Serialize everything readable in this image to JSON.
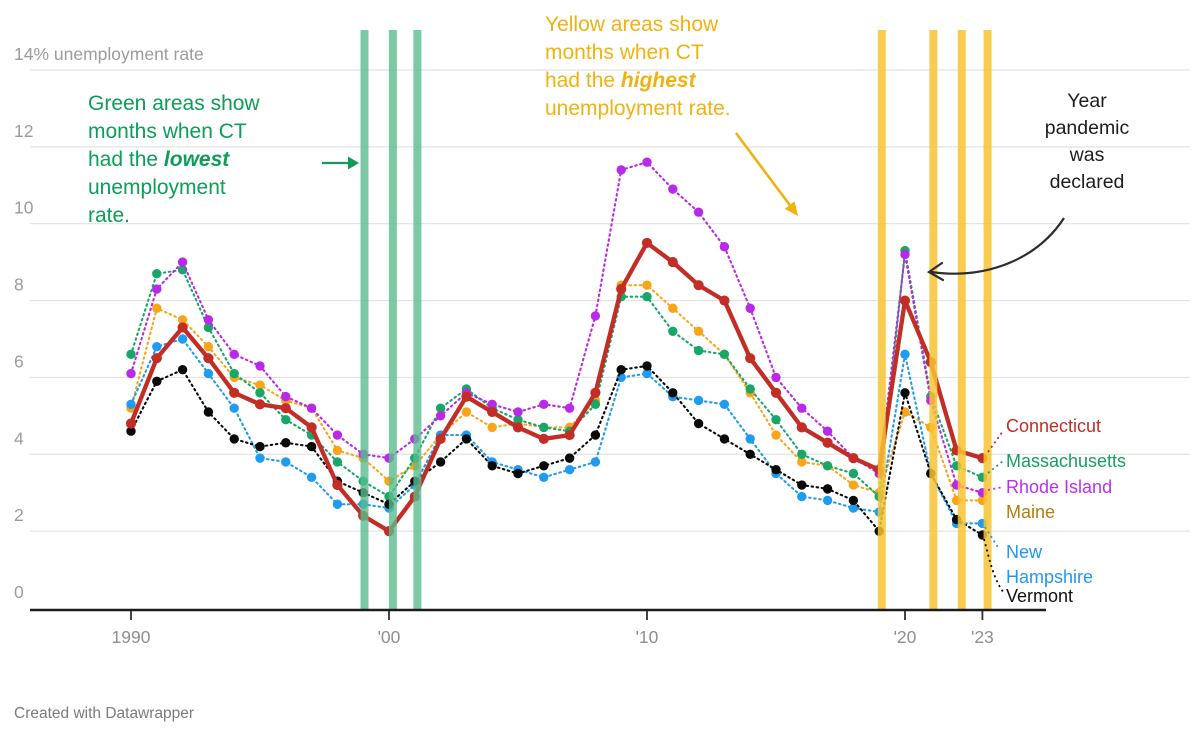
{
  "annotations": {
    "green": {
      "line1": "Green areas show",
      "line2": "months when CT",
      "line3_pre": "had the ",
      "line3_key": "lowest",
      "line4": "unemployment",
      "line5": "rate.",
      "color": "#0d9d58"
    },
    "yellow": {
      "line1": "Yellow areas show",
      "line2": "months when CT",
      "line3_pre": "had the ",
      "line3_key": "highest",
      "line4": "unemployment rate.",
      "color": "#efb211"
    },
    "pandemic": {
      "line1": "Year",
      "line2": "pandemic",
      "line3": "was",
      "line4": "declared",
      "arrow_color": "#2d2d2d"
    }
  },
  "legend": {
    "items": [
      {
        "label": "Connecticut",
        "color": "#c22d26"
      },
      {
        "label": "Massachusetts",
        "color": "#14a05e"
      },
      {
        "label": "Rhode Island",
        "color": "#bb2ff0"
      },
      {
        "label": "Maine",
        "color": "#b07d12"
      },
      {
        "label": "New Hampshire",
        "color": "#2596f0"
      },
      {
        "label": "Vermont",
        "color": "#111111"
      }
    ]
  },
  "footer": {
    "credit": "Created with Datawrapper"
  },
  "chart_data": {
    "type": "line",
    "title": "",
    "ylabel": "14% unemployment rate",
    "ylim": [
      0,
      14
    ],
    "grid": true,
    "legend_position": "right",
    "x": [
      1990,
      1991,
      1992,
      1993,
      1994,
      1995,
      1996,
      1997,
      1998,
      1999,
      2000,
      2001,
      2002,
      2003,
      2004,
      2005,
      2006,
      2007,
      2008,
      2009,
      2010,
      2011,
      2012,
      2013,
      2014,
      2015,
      2016,
      2017,
      2018,
      2019,
      2020,
      2021,
      2022,
      2023
    ],
    "x_ticks": [
      {
        "year": 1990,
        "label": "1990"
      },
      {
        "year": 2000,
        "label": "'00"
      },
      {
        "year": 2010,
        "label": "'10"
      },
      {
        "year": 2020,
        "label": "'20"
      },
      {
        "year": 2023,
        "label": "'23"
      }
    ],
    "y_ticks": [
      {
        "value": 14,
        "label": "14% unemployment rate"
      },
      {
        "value": 12,
        "label": "12"
      },
      {
        "value": 10,
        "label": "10"
      },
      {
        "value": 8,
        "label": "8"
      },
      {
        "value": 6,
        "label": "6"
      },
      {
        "value": 4,
        "label": "4"
      },
      {
        "value": 2,
        "label": "2"
      },
      {
        "value": 0,
        "label": "0"
      }
    ],
    "series": [
      {
        "name": "Maine",
        "color": "#f9a51a",
        "dashed": true,
        "values": [
          5.2,
          7.8,
          7.5,
          6.8,
          6.0,
          5.8,
          5.4,
          5.2,
          4.1,
          3.9,
          3.3,
          3.7,
          4.5,
          5.1,
          4.7,
          4.8,
          4.7,
          4.7,
          5.4,
          8.4,
          8.4,
          7.8,
          7.2,
          6.6,
          5.6,
          4.5,
          3.8,
          3.7,
          3.2,
          3.0,
          5.1,
          4.7,
          2.8,
          2.8
        ]
      },
      {
        "name": "Massachusetts",
        "color": "#17a768",
        "dashed": true,
        "values": [
          6.6,
          8.7,
          8.8,
          7.3,
          6.1,
          5.6,
          4.9,
          4.5,
          3.8,
          3.3,
          2.9,
          3.9,
          5.2,
          5.7,
          5.2,
          4.9,
          4.7,
          4.6,
          5.3,
          8.1,
          8.1,
          7.2,
          6.7,
          6.6,
          5.7,
          4.9,
          4.0,
          3.7,
          3.5,
          2.9,
          9.3,
          5.5,
          3.7,
          3.4
        ]
      },
      {
        "name": "New Hampshire",
        "color": "#1f9bf0",
        "dashed": true,
        "values": [
          5.3,
          6.8,
          7.0,
          6.1,
          5.2,
          3.9,
          3.8,
          3.4,
          2.7,
          2.7,
          2.6,
          3.2,
          4.5,
          4.5,
          3.8,
          3.6,
          3.4,
          3.6,
          3.8,
          6.0,
          6.1,
          5.5,
          5.4,
          5.3,
          4.4,
          3.5,
          2.9,
          2.8,
          2.6,
          2.5,
          6.6,
          3.5,
          2.2,
          2.2
        ]
      },
      {
        "name": "Vermont",
        "color": "#0a0a0a",
        "dashed": true,
        "values": [
          4.6,
          5.9,
          6.2,
          5.1,
          4.4,
          4.2,
          4.3,
          4.2,
          3.3,
          3.0,
          2.7,
          3.3,
          3.8,
          4.4,
          3.7,
          3.5,
          3.7,
          3.9,
          4.5,
          6.2,
          6.3,
          5.6,
          4.8,
          4.4,
          4.0,
          3.6,
          3.2,
          3.1,
          2.8,
          2.0,
          5.6,
          3.5,
          2.3,
          1.9
        ]
      },
      {
        "name": "Rhode Island",
        "color": "#b929e8",
        "dashed": true,
        "values": [
          6.1,
          8.3,
          9.0,
          7.5,
          6.6,
          6.3,
          5.5,
          5.2,
          4.5,
          4.0,
          3.9,
          4.4,
          5.0,
          5.6,
          5.3,
          5.1,
          5.3,
          5.2,
          7.6,
          11.4,
          11.6,
          10.9,
          10.3,
          9.4,
          7.8,
          6.0,
          5.2,
          4.6,
          3.9,
          3.5,
          9.2,
          5.4,
          3.2,
          3.0
        ]
      },
      {
        "name": "Connecticut",
        "color": "#c22d26",
        "dashed": false,
        "values": [
          4.8,
          6.5,
          7.3,
          6.5,
          5.6,
          5.3,
          5.2,
          4.7,
          3.2,
          2.4,
          2.0,
          2.9,
          4.4,
          5.5,
          5.1,
          4.7,
          4.4,
          4.5,
          5.6,
          8.3,
          9.5,
          9.0,
          8.4,
          8.0,
          6.5,
          5.6,
          4.7,
          4.3,
          3.9,
          3.6,
          8.0,
          6.4,
          4.1,
          3.9
        ]
      }
    ],
    "highlight_bands": {
      "green": {
        "color": "#5abc8e",
        "opacity": 0.8,
        "positions": [
          1999.05,
          2000.15,
          2001.1
        ]
      },
      "yellow": {
        "color": "#f7c331",
        "opacity": 0.85,
        "positions": [
          2019.1,
          2021.1,
          2022.2,
          2023.2
        ]
      }
    },
    "axis_colors": {
      "grid": "#e3e3e3",
      "axis": "#1c1c1c",
      "tick": "#2f2f2f",
      "tick_label": "#8f8f8f",
      "y_label": "#9c9c9c"
    }
  }
}
